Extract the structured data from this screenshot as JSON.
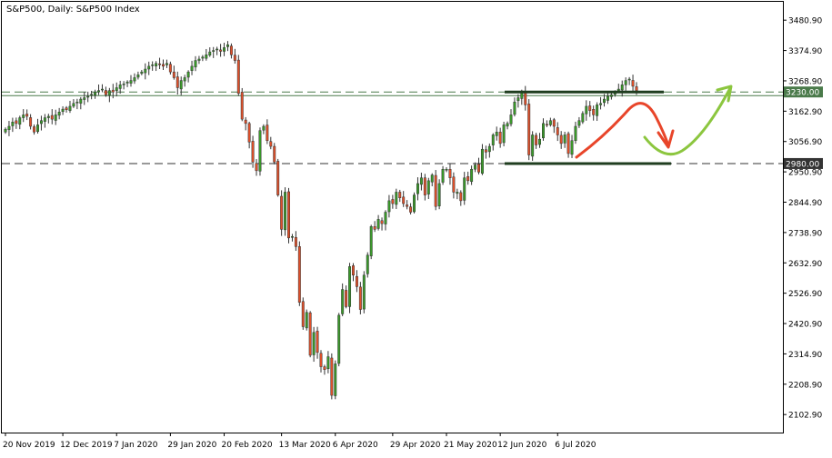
{
  "chart_data": {
    "type": "candlestick",
    "title": "S&P500, Daily:  S&P500 Index",
    "y_ticks": [
      "3480.90",
      "3374.90",
      "3268.90",
      "3162.90",
      "3056.90",
      "2950.90",
      "2844.90",
      "2738.90",
      "2632.90",
      "2526.90",
      "2420.90",
      "2314.90",
      "2208.90",
      "2102.90"
    ],
    "y_tick_values": [
      3480.9,
      3374.9,
      3268.9,
      3162.9,
      3056.9,
      2950.9,
      2844.9,
      2738.9,
      2632.9,
      2526.9,
      2420.9,
      2314.9,
      2208.9,
      2102.9
    ],
    "ylim": [
      2040,
      3545
    ],
    "x_labels": [
      "20 Nov 2019",
      "12 Dec 2019",
      "7 Jan 2020",
      "29 Jan 2020",
      "20 Feb 2020",
      "13 Mar 2020",
      "6 Apr 2020",
      "29 Apr 2020",
      "21 May 2020",
      "12 Jun 2020",
      "6 Jul 2020"
    ],
    "levels": [
      {
        "label": "3230.00",
        "value": 3230,
        "color": "#4a7a4a"
      },
      {
        "label": "2980.00",
        "value": 2980,
        "color": "#333333"
      }
    ],
    "box_levels": [
      3230,
      2980
    ],
    "candle_up_color": "#3a9a2a",
    "candle_down_color": "#e0502a",
    "arrow_down_color": "#e8452a",
    "arrow_up_color": "#8cc63f",
    "closes": [
      3100,
      3110,
      3125,
      3120,
      3140,
      3150,
      3145,
      3110,
      3090,
      3115,
      3130,
      3140,
      3145,
      3135,
      3150,
      3160,
      3170,
      3168,
      3180,
      3190,
      3195,
      3205,
      3210,
      3215,
      3222,
      3230,
      3235,
      3240,
      3220,
      3235,
      3230,
      3245,
      3255,
      3258,
      3265,
      3270,
      3280,
      3290,
      3300,
      3310,
      3320,
      3325,
      3330,
      3325,
      3320,
      3330,
      3300,
      3280,
      3245,
      3270,
      3280,
      3300,
      3320,
      3340,
      3345,
      3352,
      3360,
      3370,
      3375,
      3380,
      3372,
      3385,
      3395,
      3360,
      3340,
      3225,
      3135,
      3120,
      3055,
      2985,
      2955,
      3095,
      3110,
      3060,
      3040,
      2985,
      2870,
      2750,
      2880,
      2720,
      2725,
      2690,
      2495,
      2410,
      2460,
      2310,
      2390,
      2320,
      2270,
      2260,
      2305,
      2170,
      2280,
      2450,
      2540,
      2480,
      2620,
      2590,
      2550,
      2470,
      2590,
      2660,
      2760,
      2750,
      2785,
      2770,
      2810,
      2850,
      2840,
      2880,
      2860,
      2840,
      2830,
      2810,
      2870,
      2910,
      2930,
      2870,
      2920,
      2940,
      2830,
      2910,
      2960,
      2960,
      2930,
      2880,
      2880,
      2850,
      2930,
      2920,
      2960,
      2975,
      2950,
      3030,
      3020,
      3040,
      3080,
      3090,
      3050,
      3115,
      3120,
      3150,
      3195,
      3210,
      3230,
      3185,
      3010,
      3080,
      3045,
      3065,
      3120,
      3115,
      3130,
      3110,
      3080,
      3050,
      3080,
      3015,
      3060,
      3110,
      3130,
      3155,
      3180,
      3165,
      3150,
      3185,
      3190,
      3205,
      3215,
      3220,
      3230,
      3240,
      3255,
      3270,
      3275,
      3250,
      3235
    ]
  }
}
